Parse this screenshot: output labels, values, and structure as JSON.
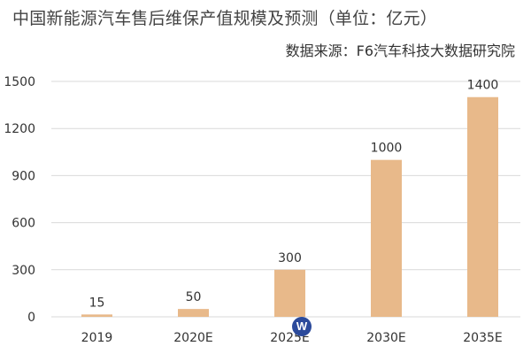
{
  "header": {
    "title": "中国新能源汽车售后维保产值规模及预测（单位：亿元）",
    "source": "数据来源：F6汽车科技大数据研究院"
  },
  "watermark": {
    "text": "W"
  },
  "chart_data": {
    "type": "bar",
    "title": "中国新能源汽车售后维保产值规模及预测（单位：亿元）",
    "xlabel": "",
    "ylabel": "",
    "categories": [
      "2019",
      "2020E",
      "2025E",
      "2030E",
      "2035E"
    ],
    "values": [
      15,
      50,
      300,
      1000,
      1400
    ],
    "data_labels": [
      "15",
      "50",
      "300",
      "1000",
      "1400"
    ],
    "ylim": [
      0,
      1500
    ],
    "yticks": [
      0,
      300,
      600,
      900,
      1200,
      1500
    ],
    "grid": true,
    "bar_color": "#e8b98a",
    "grid_color": "#d9d9d9"
  }
}
